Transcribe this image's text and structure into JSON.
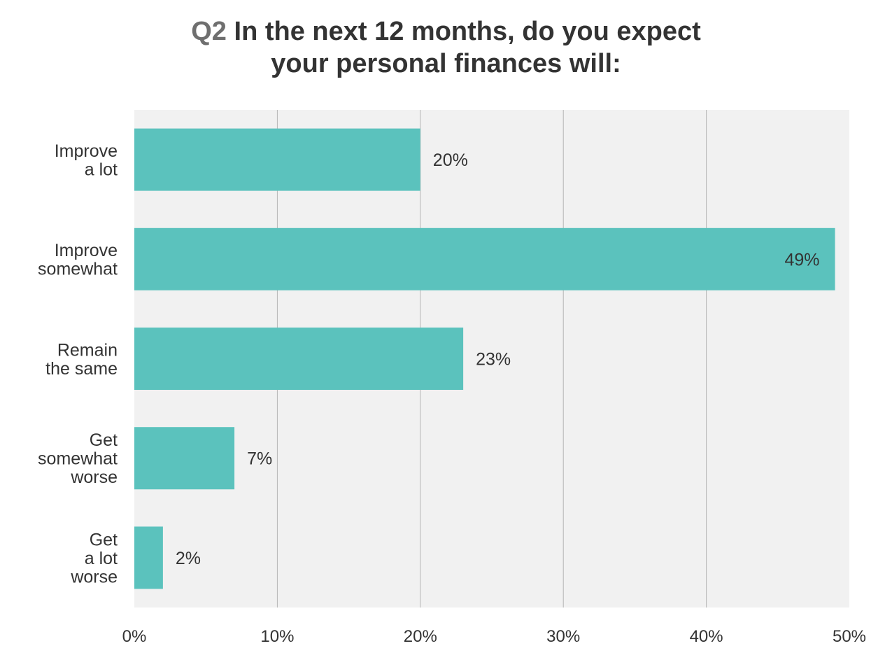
{
  "title": {
    "question_number": "Q2",
    "line1": "In the next 12 months, do you expect",
    "line2": "your personal finances will:"
  },
  "chart_data": {
    "type": "bar",
    "orientation": "horizontal",
    "categories": [
      [
        "Improve",
        "a lot"
      ],
      [
        "Improve",
        "somewhat"
      ],
      [
        "Remain",
        "the same"
      ],
      [
        "Get",
        "somewhat",
        "worse"
      ],
      [
        "Get",
        "a lot",
        "worse"
      ]
    ],
    "values": [
      20,
      49,
      23,
      7,
      2
    ],
    "data_labels": [
      "20%",
      "49%",
      "23%",
      "7%",
      "2%"
    ],
    "xlim": [
      0,
      50
    ],
    "ticks": [
      0,
      10,
      20,
      30,
      40,
      50
    ],
    "tick_labels": [
      "0%",
      "10%",
      "20%",
      "30%",
      "40%",
      "50%"
    ],
    "grid": true,
    "colors": {
      "bar": "#5bc2bd",
      "plot_background": "#f1f1f1",
      "gridline": "#b5b5b5",
      "text": "#333333",
      "question_number": "#6f6f6f"
    }
  }
}
